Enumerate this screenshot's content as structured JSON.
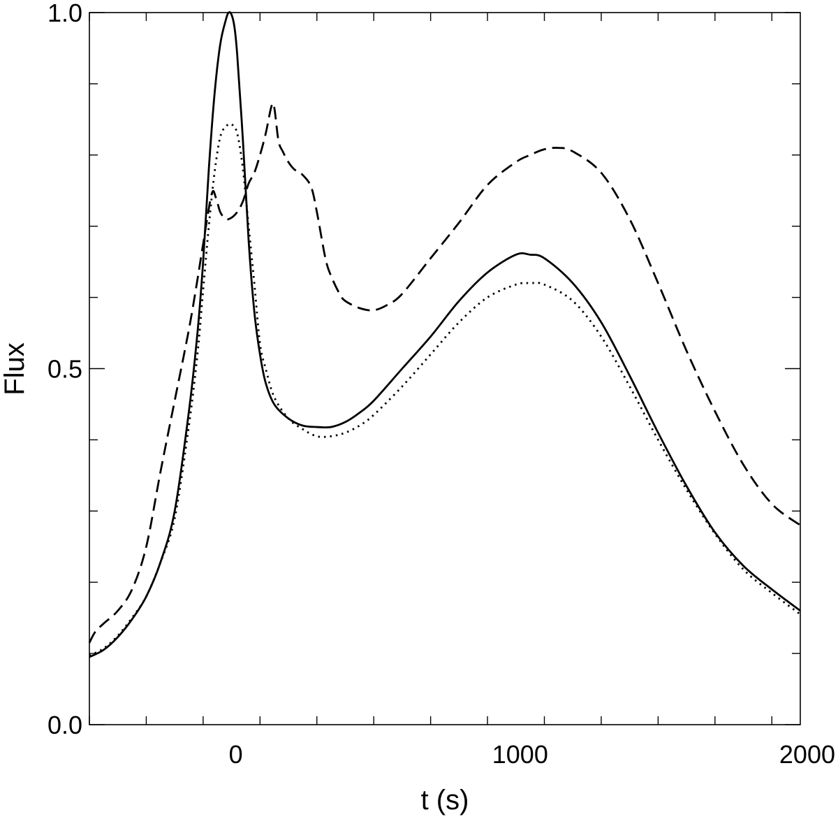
{
  "chart_data": {
    "type": "line",
    "title": "",
    "xlabel": "t (s)",
    "ylabel": "Flux",
    "xlim": [
      -500,
      2000
    ],
    "ylim": [
      0.0,
      1.0
    ],
    "x_ticks": [
      0,
      1000,
      2000
    ],
    "x_tick_labels": [
      "0",
      "1000",
      "2000"
    ],
    "x_minor_step": 200,
    "y_ticks": [
      0.0,
      0.5,
      1.0
    ],
    "y_tick_labels": [
      "0.0",
      "0.5",
      "1.0"
    ],
    "y_minor_step": 0.1,
    "grid": false,
    "legend": "none",
    "series": [
      {
        "style": "solid",
        "color": "#000000",
        "x": [
          -500,
          -450,
          -400,
          -350,
          -300,
          -250,
          -200,
          -150,
          -120,
          -100,
          -80,
          -60,
          -40,
          -20,
          -10,
          0,
          10,
          20,
          40,
          60,
          80,
          100,
          120,
          150,
          200,
          250,
          300,
          350,
          400,
          450,
          500,
          600,
          700,
          800,
          900,
          1000,
          1050,
          1100,
          1200,
          1300,
          1400,
          1500,
          1600,
          1700,
          1800,
          1900,
          2000
        ],
        "y": [
          0.095,
          0.105,
          0.123,
          0.148,
          0.18,
          0.228,
          0.3,
          0.44,
          0.55,
          0.65,
          0.78,
          0.885,
          0.955,
          0.99,
          1.0,
          0.997,
          0.98,
          0.94,
          0.82,
          0.68,
          0.58,
          0.52,
          0.48,
          0.45,
          0.43,
          0.42,
          0.418,
          0.418,
          0.425,
          0.438,
          0.455,
          0.5,
          0.545,
          0.595,
          0.635,
          0.66,
          0.66,
          0.655,
          0.62,
          0.565,
          0.49,
          0.41,
          0.335,
          0.27,
          0.223,
          0.19,
          0.16
        ]
      },
      {
        "style": "dashed",
        "color": "#000000",
        "x": [
          -500,
          -480,
          -450,
          -400,
          -350,
          -300,
          -250,
          -200,
          -150,
          -120,
          -100,
          -70,
          -55,
          -40,
          -20,
          0,
          20,
          40,
          60,
          80,
          100,
          120,
          140,
          150,
          165,
          180,
          200,
          220,
          250,
          280,
          300,
          330,
          350,
          380,
          400,
          450,
          500,
          550,
          600,
          700,
          800,
          900,
          1000,
          1050,
          1100,
          1150,
          1200,
          1300,
          1400,
          1500,
          1600,
          1700,
          1800,
          1900,
          2000
        ],
        "y": [
          0.115,
          0.13,
          0.142,
          0.16,
          0.19,
          0.25,
          0.355,
          0.455,
          0.555,
          0.625,
          0.675,
          0.745,
          0.74,
          0.72,
          0.71,
          0.712,
          0.72,
          0.735,
          0.76,
          0.775,
          0.8,
          0.83,
          0.868,
          0.867,
          0.82,
          0.805,
          0.79,
          0.78,
          0.772,
          0.755,
          0.72,
          0.655,
          0.63,
          0.605,
          0.595,
          0.585,
          0.582,
          0.59,
          0.605,
          0.655,
          0.705,
          0.758,
          0.79,
          0.8,
          0.808,
          0.81,
          0.805,
          0.775,
          0.71,
          0.62,
          0.525,
          0.44,
          0.365,
          0.31,
          0.28
        ]
      },
      {
        "style": "dotted",
        "color": "#000000",
        "x": [
          -500,
          -450,
          -400,
          -350,
          -300,
          -250,
          -200,
          -150,
          -120,
          -100,
          -80,
          -60,
          -40,
          -20,
          0,
          20,
          40,
          60,
          80,
          100,
          120,
          150,
          200,
          250,
          300,
          350,
          400,
          450,
          500,
          600,
          700,
          800,
          900,
          1000,
          1050,
          1100,
          1200,
          1300,
          1400,
          1500,
          1600,
          1700,
          1800,
          1900,
          2000
        ],
        "y": [
          0.097,
          0.107,
          0.125,
          0.15,
          0.18,
          0.228,
          0.29,
          0.42,
          0.52,
          0.61,
          0.7,
          0.775,
          0.825,
          0.84,
          0.843,
          0.83,
          0.78,
          0.7,
          0.62,
          0.535,
          0.5,
          0.46,
          0.43,
          0.415,
          0.405,
          0.405,
          0.41,
          0.42,
          0.435,
          0.475,
          0.52,
          0.565,
          0.6,
          0.618,
          0.62,
          0.618,
          0.595,
          0.545,
          0.475,
          0.4,
          0.33,
          0.268,
          0.218,
          0.185,
          0.155
        ]
      }
    ]
  }
}
